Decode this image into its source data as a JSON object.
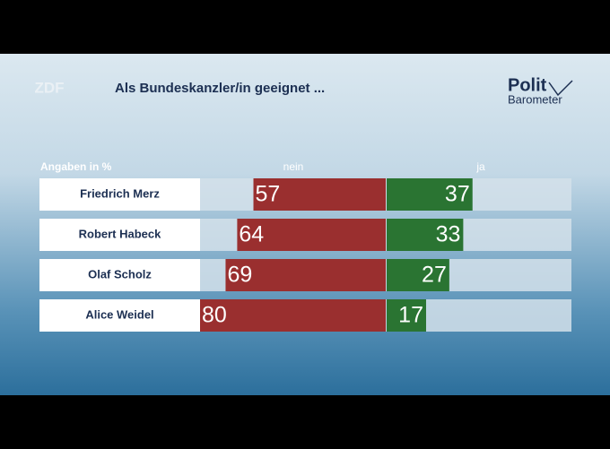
{
  "broadcaster": "ZDF",
  "brand": {
    "line1": "Polit",
    "line2": "Barometer"
  },
  "chart_data": {
    "type": "diverging-bar",
    "title": "Als Bundeskanzler/in geeignet ...",
    "subtitle": "Angaben in %",
    "categories": [
      "Friedrich Merz",
      "Robert Habeck",
      "Olaf Scholz",
      "Alice Weidel"
    ],
    "series": [
      {
        "name": "nein",
        "color": "#9a2f2f",
        "values": [
          57,
          64,
          69,
          80
        ]
      },
      {
        "name": "ja",
        "color": "#2a7432",
        "values": [
          37,
          33,
          27,
          17
        ]
      }
    ],
    "xlim": [
      0,
      80
    ]
  }
}
